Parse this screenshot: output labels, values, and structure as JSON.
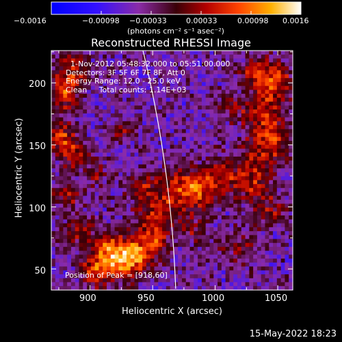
{
  "colorbar": {
    "tick_labels": [
      "−0.0016",
      "−0.00098",
      "−0.00033",
      "0.00033",
      "0.00098",
      "0.0016"
    ],
    "units": "(photons cm⁻² s⁻¹ asec⁻²)",
    "range": [
      -0.0016,
      0.0016
    ],
    "stops": [
      {
        "v": 0.0,
        "c": "#0000ff"
      },
      {
        "v": 0.18,
        "c": "#3310ff"
      },
      {
        "v": 0.35,
        "c": "#8a2ba8"
      },
      {
        "v": 0.5,
        "c": "#3a0008"
      },
      {
        "v": 0.62,
        "c": "#b30000"
      },
      {
        "v": 0.75,
        "c": "#ff4400"
      },
      {
        "v": 0.88,
        "c": "#ffb000"
      },
      {
        "v": 1.0,
        "c": "#ffffff"
      }
    ]
  },
  "chart_data": {
    "type": "heatmap",
    "title": "Reconstructed RHESSI Image",
    "xlabel": "Heliocentric X (arcsec)",
    "ylabel": "Heliocentric Y (arcsec)",
    "xlim": [
      869,
      1062
    ],
    "ylim": [
      33,
      226
    ],
    "x_ticks": [
      900,
      950,
      1000,
      1050
    ],
    "y_ticks": [
      50,
      100,
      150,
      200
    ],
    "info_lines": [
      "1-Nov-2012 05:48:32.000 to 05:51:00.000",
      "Detectors: 3F 5F 6F 7F 8F, Att 0",
      "Energy Range: 12.0 - 25.0 keV",
      "Clean     Total counts: 1.14E+03"
    ],
    "peak_text": "Position of Peak = [918,60]",
    "grid": false,
    "limb_color": "#ffffff"
  },
  "timestamp": "15-May-2022 18:23"
}
